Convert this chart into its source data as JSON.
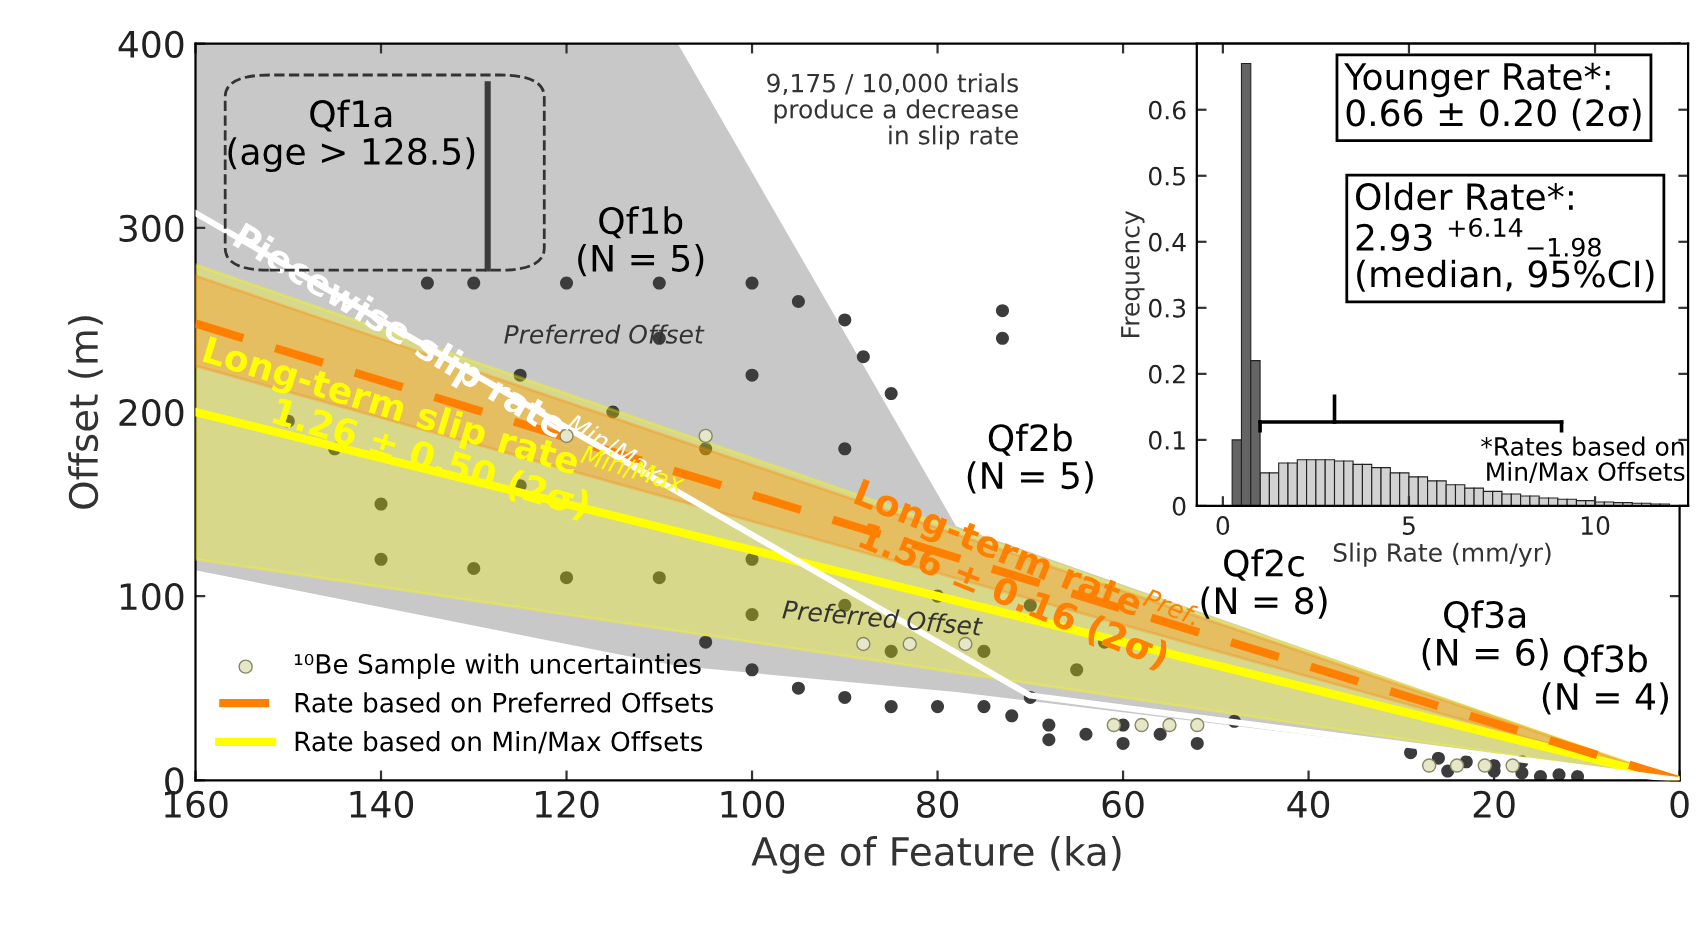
{
  "chart_data": [
    {
      "type": "line",
      "xlabel": "Age of Feature (ka)",
      "ylabel": "Offset (m)",
      "xlim": [
        160,
        0
      ],
      "ylim": [
        0,
        400
      ],
      "xticks": [
        160,
        140,
        120,
        100,
        80,
        60,
        40,
        20,
        0
      ],
      "yticks": [
        0,
        100,
        200,
        300,
        400
      ],
      "legend": "bottom left",
      "series": [
        {
          "type": "line",
          "color": "#c8c8c8",
          "x": [
            160,
            108,
            78,
            0
          ],
          "values": [
            null,
            null,
            null,
            null
          ],
          "lower": [
            114,
            62,
            48,
            0
          ],
          "upper": [
            400,
            400,
            138,
            0
          ]
        },
        {
          "type": "scatter",
          "marker": "circle",
          "color": "#3c3c3c",
          "x": [
            150,
            145,
            140,
            135,
            130,
            120,
            110,
            100,
            95,
            90,
            88,
            85,
            90,
            95,
            100,
            110,
            120,
            130,
            140,
            115,
            105,
            125,
            125,
            110,
            100,
            73,
            73,
            105,
            100,
            95,
            90,
            85,
            80,
            75,
            70,
            65,
            62,
            70,
            80,
            90,
            100,
            85,
            75,
            72,
            68,
            64,
            60,
            56,
            48,
            52,
            60,
            68,
            29,
            26,
            23,
            20,
            17,
            25,
            20,
            17,
            15,
            13,
            11
          ],
          "values": [
            195,
            180,
            150,
            270,
            270,
            270,
            270,
            270,
            260,
            250,
            230,
            210,
            180,
            null,
            120,
            110,
            110,
            115,
            120,
            200,
            180,
            220,
            160,
            240,
            220,
            255,
            240,
            75,
            60,
            50,
            45,
            40,
            40,
            40,
            45,
            60,
            75,
            95,
            100,
            95,
            90,
            70,
            70,
            35,
            30,
            25,
            20,
            25,
            32,
            20,
            30,
            22,
            15,
            12,
            10,
            8,
            10,
            5,
            5,
            4,
            2,
            3,
            2
          ]
        },
        {
          "type": "line",
          "color": "#3c3c3c",
          "x": [
            128.5,
            128.5
          ],
          "values": [
            278,
            378
          ]
        },
        {
          "type": "line",
          "name": "Rate based on Min/Max Offsets",
          "color": "#ffff00",
          "line_style": "solid",
          "x": [
            160,
            0
          ],
          "values": [
            200,
            0
          ],
          "lower": [
            120,
            0
          ],
          "upper": [
            280,
            0
          ]
        },
        {
          "type": "line",
          "name": "Rate based on Preferred Offsets",
          "color": "#ff8000",
          "line_style": "dashed",
          "x": [
            160,
            0
          ],
          "values": [
            248,
            0
          ],
          "lower": [
            225,
            0
          ],
          "upper": [
            274,
            0
          ]
        },
        {
          "type": "line",
          "color": "#ffffff",
          "line_style": "solid",
          "x": [
            160,
            70,
            0
          ],
          "values": [
            308,
            46,
            0
          ]
        },
        {
          "type": "scatter",
          "name": "¹⁰Be Sample with uncertainties",
          "marker": "circle",
          "color": "#e6e6c8",
          "x": [
            120,
            105,
            88,
            83,
            77,
            61,
            58,
            55,
            52,
            27,
            24,
            21,
            18
          ],
          "values": [
            187,
            187,
            74,
            74,
            74,
            30,
            30,
            30,
            30,
            8,
            8,
            8,
            8
          ]
        }
      ],
      "annotations": [
        "Qf1a\n(age > 128.5)",
        "Qf1b\n(N = 5)",
        "Qf2b\n(N = 5)",
        "Qf2c\n(N = 8)",
        "Qf3a\n(N = 6)",
        "Qf3b\n(N = 4)",
        "Preferred Offset",
        {
          "text": "Preferred Offset",
          "x": 86,
          "y": 87
        },
        {
          "text": "Piecewise slip rate$^{Min/Max}$",
          "x": 133,
          "y": 229
        },
        {
          "text": "Long-term slip rate$^{Min/Max}$\n1.26 ± 0.50 (2σ)",
          "x": 134,
          "y": 185
        },
        {
          "text": "Long-term rate$^{Pref.}$\n1.56 ± 0.16 (2σ)",
          "x": 71,
          "y": 110
        },
        "9,175 / 10,000 trials\nproduce a decrease\nin slip rate"
      ]
    },
    {
      "type": "histogram",
      "xlabel": "Slip Rate (mm/yr)",
      "ylabel": "Frequency",
      "xlim": [
        -0.7,
        12.5
      ],
      "ylim": [
        0,
        0.7
      ],
      "xticks": [
        0,
        5,
        10
      ],
      "yticks": [
        0,
        0.1,
        0.2,
        0.3,
        0.4,
        0.5,
        0.6
      ],
      "bins": [
        0,
        0.25,
        0.5,
        0.75,
        1,
        1.25,
        1.5,
        1.75,
        2,
        2.25,
        2.5,
        2.75,
        3,
        3.25,
        3.5,
        3.75,
        4,
        4.25,
        4.5,
        4.75,
        5,
        5.25,
        5.5,
        5.75,
        6,
        6.25,
        6.5,
        6.75,
        7,
        7.25,
        7.5,
        7.75,
        8,
        8.25,
        8.5,
        8.75,
        9,
        9.25,
        9.5,
        9.75,
        10,
        10.25,
        10.5,
        10.75,
        11,
        11.25,
        11.5,
        11.75,
        12
      ],
      "series": [
        {
          "color": "#d2d2d2",
          "values": [
            null,
            null,
            null,
            null,
            0.05,
            0.05,
            0.065,
            0.065,
            0.07,
            0.07,
            0.07,
            0.07,
            0.068,
            0.068,
            0.063,
            0.063,
            0.058,
            0.058,
            0.05,
            0.05,
            0.044,
            0.044,
            0.038,
            0.038,
            0.032,
            0.032,
            0.027,
            0.027,
            0.022,
            0.022,
            0.018,
            0.018,
            0.015,
            0.015,
            0.012,
            0.012,
            0.01,
            0.01,
            0.008,
            0.008,
            0.006,
            0.006,
            0.005,
            0.005,
            0.004,
            0.004,
            0.003,
            0.003
          ]
        },
        {
          "color": "#646464",
          "values": [
            null,
            0.1,
            0.67,
            0.22,
            null,
            null,
            null,
            null,
            null,
            null,
            null,
            null,
            null,
            null,
            null,
            null,
            null,
            null,
            null,
            null,
            null,
            null,
            null,
            null,
            null,
            null,
            null,
            null,
            null,
            null,
            null,
            null,
            null,
            null,
            null,
            null,
            null,
            null,
            null,
            null,
            null,
            null,
            null,
            null,
            null,
            null,
            null,
            null
          ]
        }
      ],
      "annotations": [
        "Younger Rate*:\n0.66 ± 0.20 (2σ)",
        "Older Rate*:\n2.93 $^{+6.14}$$_{−1.98}$\n(median, 95%CI)",
        "*Rates based on\nMin/Max Offsets"
      ]
    }
  ]
}
